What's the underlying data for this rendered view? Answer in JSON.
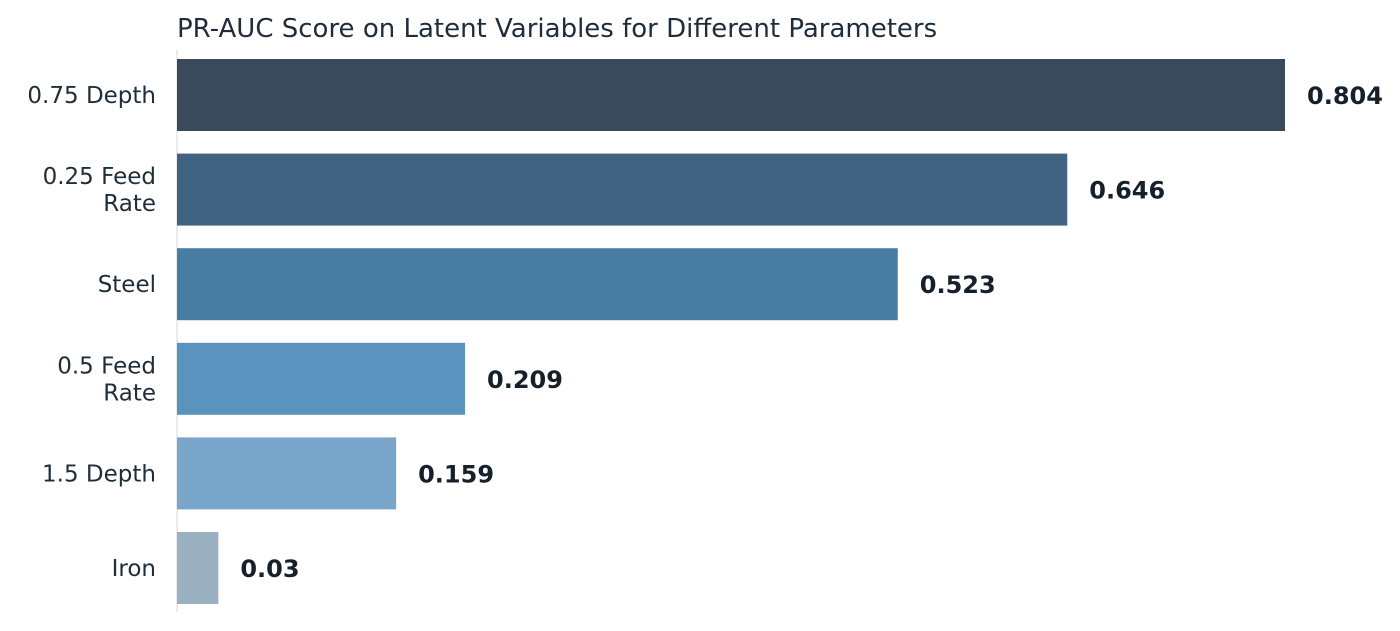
{
  "chart_data": {
    "type": "bar",
    "orientation": "horizontal",
    "title": "PR-AUC Score on Latent Variables for Different Parameters",
    "xlabel": "",
    "ylabel": "",
    "categories": [
      [
        "0.75 Depth"
      ],
      [
        "0.25 Feed",
        "Rate"
      ],
      [
        "Steel"
      ],
      [
        "0.5 Feed",
        "Rate"
      ],
      [
        "1.5 Depth"
      ],
      [
        "Iron"
      ]
    ],
    "values": [
      0.804,
      0.646,
      0.523,
      0.209,
      0.159,
      0.03
    ],
    "value_labels": [
      "0.804",
      "0.646",
      "0.523",
      "0.209",
      "0.159",
      "0.03"
    ],
    "colors": [
      "#3a4a5a",
      "#3f6380",
      "#477ca3",
      "#5b93bf",
      "#7aa6cb",
      "#9bb1c2"
    ],
    "xlim": [
      0,
      0.804
    ],
    "grid": false,
    "legend": "none"
  }
}
